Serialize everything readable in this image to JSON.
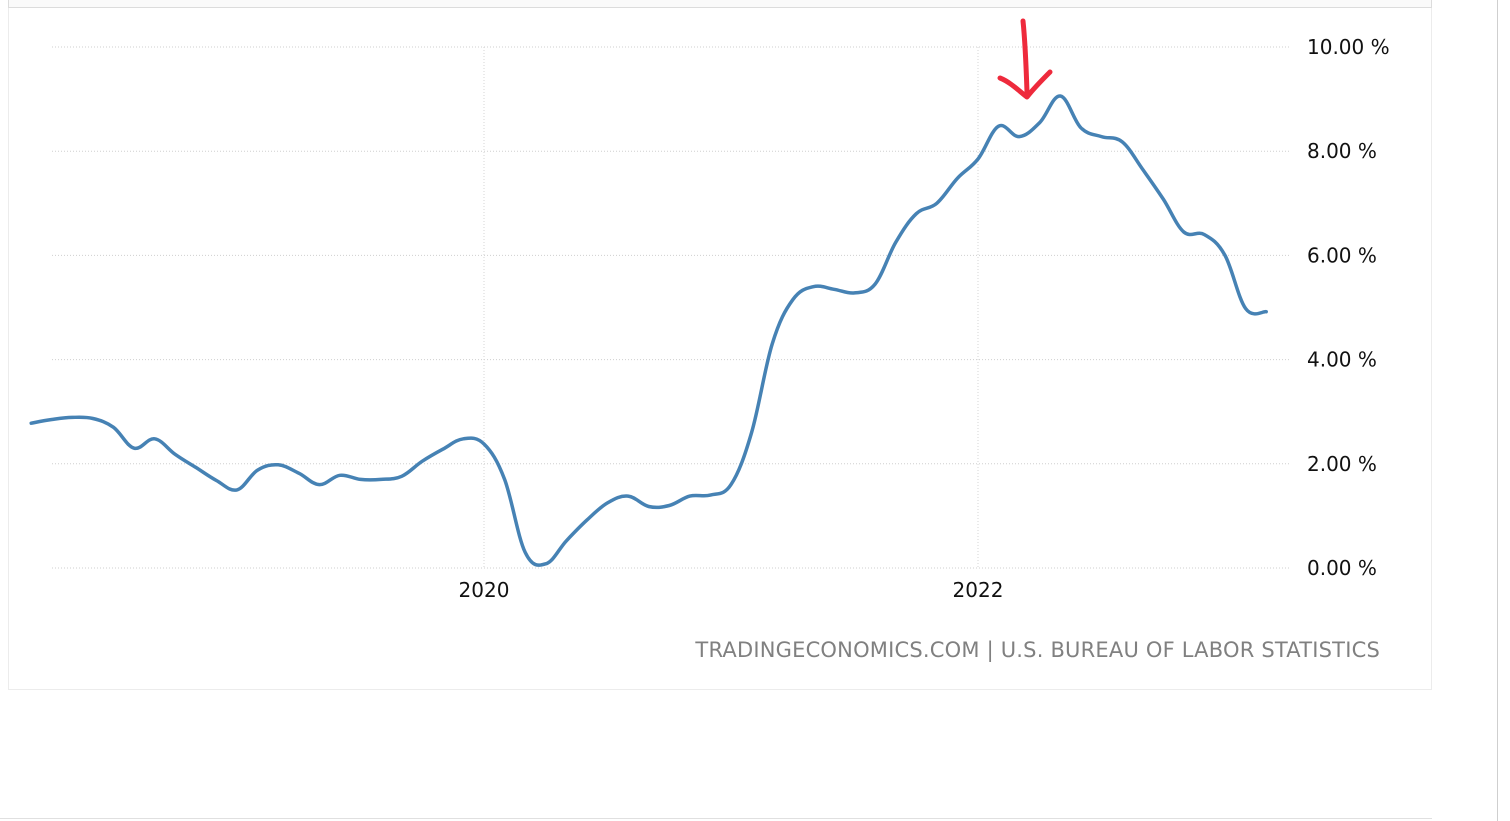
{
  "source_label": "TRADINGECONOMICS.COM | U.S. BUREAU OF LABOR STATISTICS",
  "annotation": {
    "icon": "red-down-arrow-icon",
    "color": "#ee2a3c"
  },
  "chart_data": {
    "type": "line",
    "title": "",
    "xlabel": "",
    "ylabel": "",
    "ylim": [
      0,
      10
    ],
    "yticks": [
      {
        "value": 10,
        "label": "10.00 %"
      },
      {
        "value": 8,
        "label": "8.00 %"
      },
      {
        "value": 6,
        "label": "6.00 %"
      },
      {
        "value": 4,
        "label": "4.00 %"
      },
      {
        "value": 2,
        "label": "2.00 %"
      },
      {
        "value": 0,
        "label": "0.00 %"
      }
    ],
    "xticks": [
      {
        "value": "2020-01",
        "label": "2020"
      },
      {
        "value": "2022-01",
        "label": "2022"
      }
    ],
    "grid": true,
    "series": [
      {
        "color": "#4682b4",
        "points": [
          [
            "2018-03",
            2.78
          ],
          [
            "2018-04",
            2.85
          ],
          [
            "2018-05",
            2.89
          ],
          [
            "2018-06",
            2.87
          ],
          [
            "2018-07",
            2.7
          ],
          [
            "2018-08",
            2.3
          ],
          [
            "2018-09",
            2.48
          ],
          [
            "2018-10",
            2.18
          ],
          [
            "2018-11",
            1.93
          ],
          [
            "2018-12",
            1.68
          ],
          [
            "2019-01",
            1.5
          ],
          [
            "2019-02",
            1.88
          ],
          [
            "2019-03",
            1.98
          ],
          [
            "2019-04",
            1.82
          ],
          [
            "2019-05",
            1.6
          ],
          [
            "2019-06",
            1.78
          ],
          [
            "2019-07",
            1.7
          ],
          [
            "2019-08",
            1.7
          ],
          [
            "2019-09",
            1.76
          ],
          [
            "2019-10",
            2.05
          ],
          [
            "2019-11",
            2.28
          ],
          [
            "2019-12",
            2.48
          ],
          [
            "2020-01",
            2.38
          ],
          [
            "2020-02",
            1.7
          ],
          [
            "2020-03",
            0.3
          ],
          [
            "2020-04",
            0.08
          ],
          [
            "2020-05",
            0.52
          ],
          [
            "2020-06",
            0.92
          ],
          [
            "2020-07",
            1.25
          ],
          [
            "2020-08",
            1.38
          ],
          [
            "2020-09",
            1.18
          ],
          [
            "2020-10",
            1.2
          ],
          [
            "2020-11",
            1.38
          ],
          [
            "2020-12",
            1.4
          ],
          [
            "2021-01",
            1.6
          ],
          [
            "2021-02",
            2.6
          ],
          [
            "2021-03",
            4.3
          ],
          [
            "2021-04",
            5.15
          ],
          [
            "2021-05",
            5.4
          ],
          [
            "2021-06",
            5.35
          ],
          [
            "2021-07",
            5.28
          ],
          [
            "2021-08",
            5.45
          ],
          [
            "2021-09",
            6.25
          ],
          [
            "2021-10",
            6.8
          ],
          [
            "2021-11",
            7.0
          ],
          [
            "2021-12",
            7.48
          ],
          [
            "2022-01",
            7.85
          ],
          [
            "2022-02",
            8.48
          ],
          [
            "2022-03",
            8.28
          ],
          [
            "2022-04",
            8.55
          ],
          [
            "2022-05",
            9.06
          ],
          [
            "2022-06",
            8.45
          ],
          [
            "2022-07",
            8.28
          ],
          [
            "2022-08",
            8.18
          ],
          [
            "2022-09",
            7.65
          ],
          [
            "2022-10",
            7.08
          ],
          [
            "2022-11",
            6.45
          ],
          [
            "2022-12",
            6.4
          ],
          [
            "2023-01",
            6.0
          ],
          [
            "2023-02",
            4.98
          ],
          [
            "2023-03",
            4.92
          ]
        ]
      }
    ]
  }
}
